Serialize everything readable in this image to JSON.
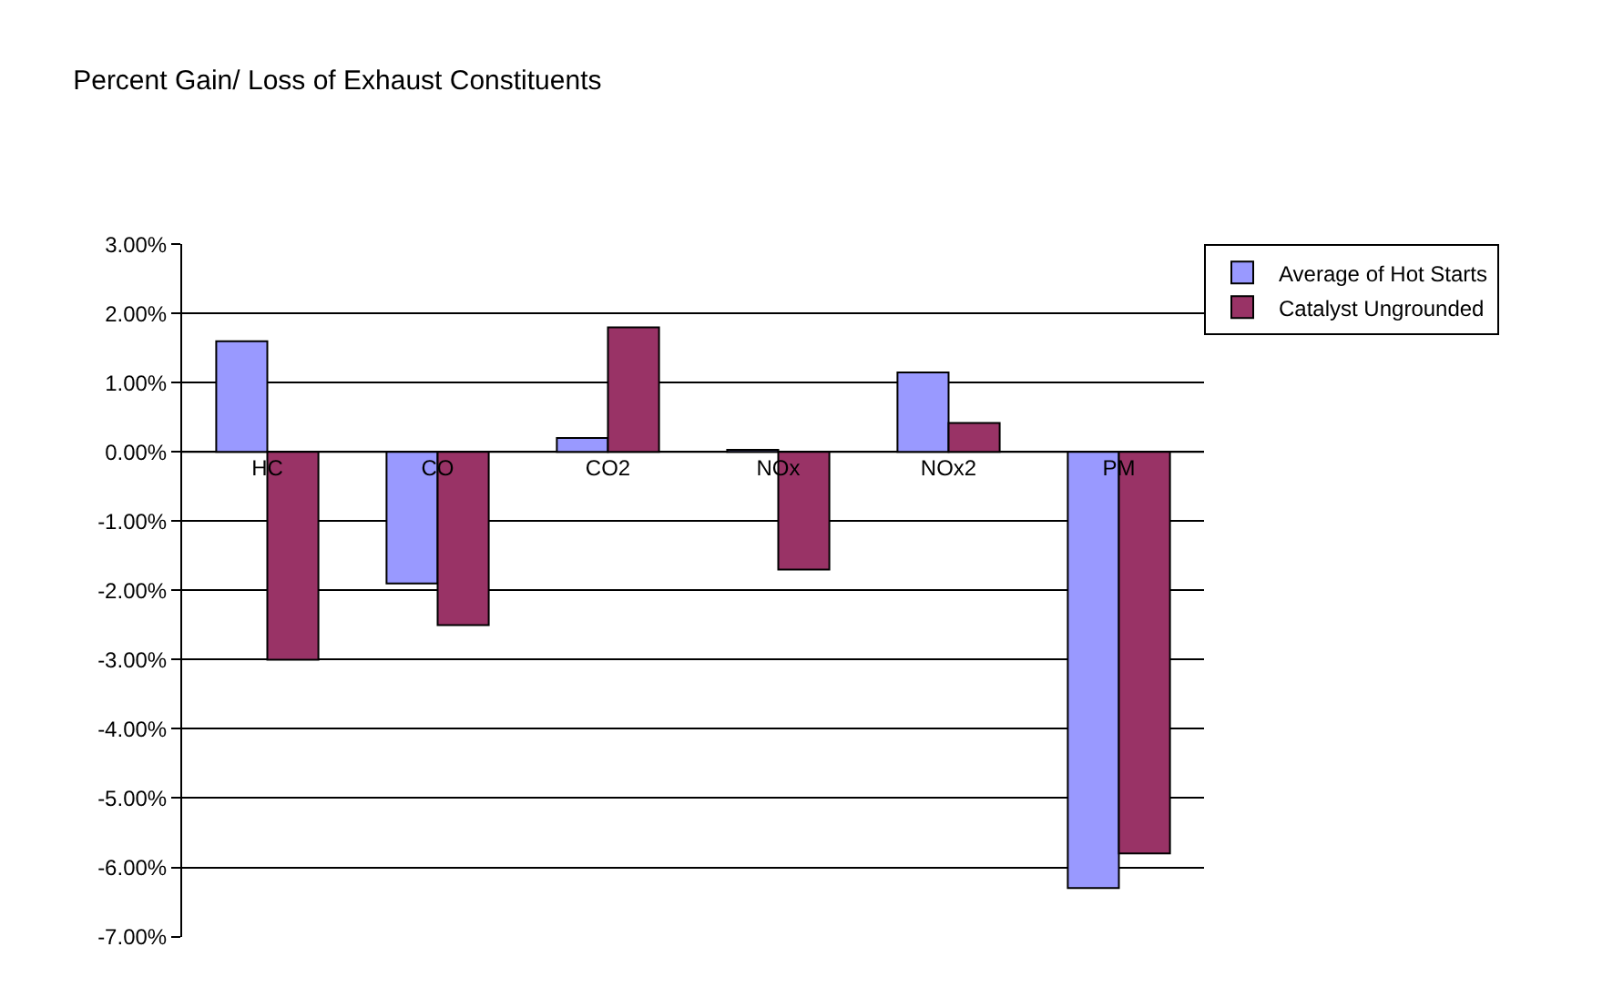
{
  "chart_data": {
    "type": "bar",
    "title": "Percent Gain/ Loss of Exhaust Constituents",
    "categories": [
      "HC",
      "CO",
      "CO2",
      "NOx",
      "NOx2",
      "PM"
    ],
    "series": [
      {
        "name": "Average of Hot Starts",
        "color": "#9999ff",
        "values": [
          1.6,
          -1.9,
          0.2,
          0.03,
          1.15,
          -6.3
        ]
      },
      {
        "name": "Catalyst Ungrounded",
        "color": "#993366",
        "values": [
          -3.0,
          -2.5,
          1.8,
          -1.7,
          0.42,
          -5.8
        ]
      }
    ],
    "ylim": [
      -7,
      3
    ],
    "yticks": [
      {
        "value": -7,
        "label": "-7.00%"
      },
      {
        "value": -6,
        "label": "-6.00%"
      },
      {
        "value": -5,
        "label": "-5.00%"
      },
      {
        "value": -4,
        "label": "-4.00%"
      },
      {
        "value": -3,
        "label": "-3.00%"
      },
      {
        "value": -2,
        "label": "-2.00%"
      },
      {
        "value": -1,
        "label": "-1.00%"
      },
      {
        "value": 0,
        "label": "0.00%"
      },
      {
        "value": 1,
        "label": "1.00%"
      },
      {
        "value": 2,
        "label": "2.00%"
      },
      {
        "value": 3,
        "label": "3.00%"
      }
    ],
    "grid": "y",
    "legend": "top right"
  }
}
